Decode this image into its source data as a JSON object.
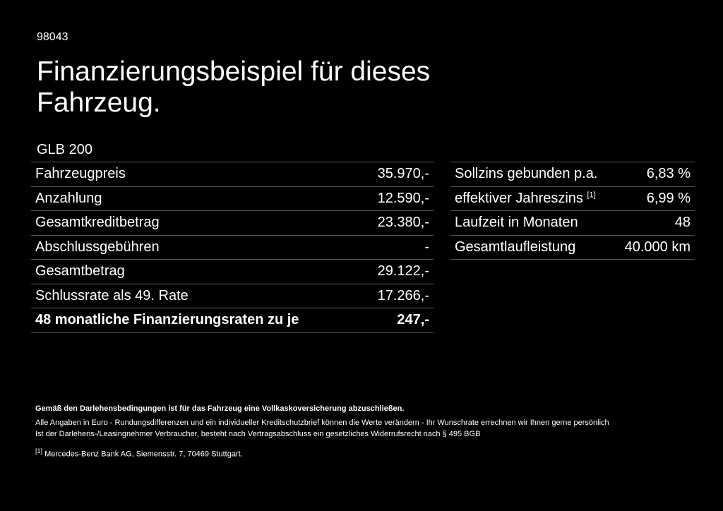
{
  "code": "98043",
  "title": "Finanzierungsbeispiel für dieses Fahrzeug.",
  "model": "GLB 200",
  "left_table": {
    "rows": [
      {
        "label": "Fahrzeugpreis",
        "value": "35.970,-"
      },
      {
        "label": "Anzahlung",
        "value": "12.590,-"
      },
      {
        "label": "Gesamtkreditbetrag",
        "value": "23.380,-"
      },
      {
        "label": "Abschlussgebühren",
        "value": "-"
      },
      {
        "label": "Gesamtbetrag",
        "value": "29.122,-"
      },
      {
        "label": "Schlussrate als 49. Rate",
        "value": "17.266,-"
      },
      {
        "label": "48 monatliche Finanzierungsraten zu je",
        "value": "247,-"
      }
    ]
  },
  "right_table": {
    "rows": [
      {
        "label": "Sollzins gebunden p.a.",
        "value": "6,83 %"
      },
      {
        "label": "effektiver Jahreszins",
        "ref": "[1]",
        "value": "6,99 %"
      },
      {
        "label": "Laufzeit in Monaten",
        "value": "48"
      },
      {
        "label": "Gesamtlaufleistung",
        "value": "40.000 km"
      }
    ]
  },
  "notes": {
    "bold": "Gemäß den Darlehensbedingungen ist für das Fahrzeug eine Vollkaskoversicherung abzuschließen.",
    "lines": [
      "Alle Angaben in Euro - Rundungsdifferenzen und ein individueller Kreditschutzbrief können die Werte verändern - Ihr Wunschrate errechnen wir Ihnen gerne persönlich",
      "Ist der Darlehens-/Leasingnehmer Verbraucher, besteht nach Vertragsabschluss ein gesetzliches Widerrufsrecht nach § 495 BGB"
    ],
    "footnote": {
      "ref": "[1]",
      "text": "Mercedes-Benz Bank AG, Siemensstr. 7, 70469 Stuttgart."
    }
  }
}
